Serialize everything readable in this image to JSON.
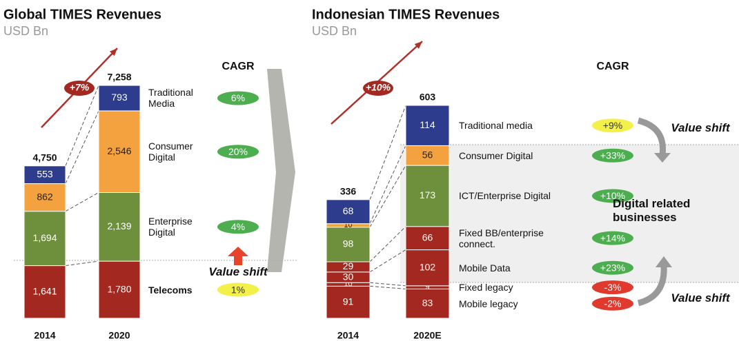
{
  "chart_data": [
    {
      "type": "bar",
      "stacked": true,
      "title": "Global TIMES Revenues",
      "subtitle": "USD Bn",
      "categories": [
        "2014",
        "2020"
      ],
      "totals": [
        4750,
        7258
      ],
      "total_labels": [
        "4,750",
        "7,258"
      ],
      "growth": "+7%",
      "cagr_title": "CAGR",
      "series": [
        {
          "name": "Telecoms",
          "color": "#a3281f",
          "text_color": "#ffffff",
          "values": [
            1641,
            1780
          ],
          "value_labels": [
            "1,641",
            "1,780"
          ],
          "cagr": "1%",
          "cagr_color": "#f3f04a"
        },
        {
          "name": "Enterprise Digital",
          "color": "#6e8f3c",
          "text_color": "#ffffff",
          "values": [
            1694,
            2139
          ],
          "value_labels": [
            "1,694",
            "2,139"
          ],
          "cagr": "4%",
          "cagr_color": "#4cae4f"
        },
        {
          "name": "Consumer Digital",
          "color": "#f4a13f",
          "text_color": "#222222",
          "values": [
            862,
            2546
          ],
          "value_labels": [
            "862",
            "2,546"
          ],
          "cagr": "20%",
          "cagr_color": "#4cae4f"
        },
        {
          "name": "Traditional Media",
          "color": "#2e3c8e",
          "text_color": "#ffffff",
          "values": [
            553,
            793
          ],
          "cagr": "6%",
          "cagr_color": "#4cae4f"
        }
      ],
      "annotations": [
        "Value shift"
      ]
    },
    {
      "type": "bar",
      "stacked": true,
      "title": "Indonesian TIMES Revenues",
      "subtitle": "USD Bn",
      "categories": [
        "2014",
        "2020E"
      ],
      "totals": [
        336,
        603
      ],
      "growth": "+10%",
      "cagr_title": "CAGR",
      "series": [
        {
          "name": "Mobile legacy",
          "color": "#a3281f",
          "text_color": "#ffffff",
          "values": [
            91,
            83
          ],
          "cagr": "-2%",
          "cagr_color": "#e03a2e"
        },
        {
          "name": "Fixed legacy",
          "color": "#a3281f",
          "text_color": "#ffffff",
          "values": [
            10,
            9
          ],
          "cagr": "-3%",
          "cagr_color": "#e03a2e"
        },
        {
          "name": "Mobile Data",
          "color": "#a3281f",
          "text_color": "#ffffff",
          "values": [
            30,
            102
          ],
          "cagr": "+23%",
          "cagr_color": "#4cae4f"
        },
        {
          "name": "Fixed BB/enterprise connect.",
          "color": "#a3281f",
          "text_color": "#ffffff",
          "values": [
            29,
            66
          ],
          "cagr": "+14%",
          "cagr_color": "#4cae4f"
        },
        {
          "name": "ICT/Enterprise Digital",
          "color": "#6e8f3c",
          "text_color": "#ffffff",
          "values": [
            98,
            173
          ],
          "cagr": "+10%",
          "cagr_color": "#4cae4f"
        },
        {
          "name": "Consumer Digital",
          "color": "#f4a13f",
          "text_color": "#222222",
          "values": [
            10,
            56
          ],
          "cagr": "+33%",
          "cagr_color": "#4cae4f"
        },
        {
          "name": "Traditional media",
          "color": "#2e3c8e",
          "text_color": "#ffffff",
          "values": [
            68,
            114
          ],
          "cagr": "+9%",
          "cagr_color": "#f3f04a"
        }
      ],
      "annotations": [
        "Value shift",
        "Digital related businesses",
        "Value shift"
      ]
    }
  ]
}
